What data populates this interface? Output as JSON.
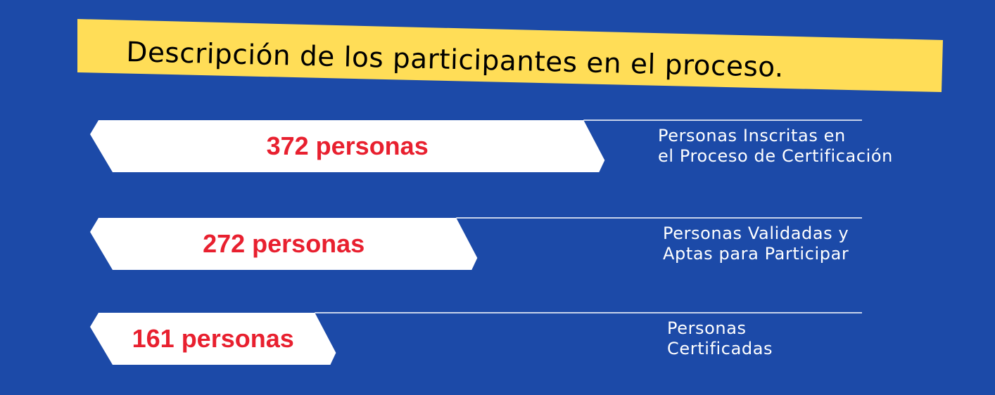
{
  "title": "Descripción de los participantes en el proceso.",
  "colors": {
    "background": "#1c4aa8",
    "banner": "#ffdd57",
    "bar": "#ffffff",
    "value_text": "#e8202f",
    "label_text": "#ffffff"
  },
  "chart_data": {
    "type": "bar",
    "orientation": "horizontal",
    "title": "Descripción de los participantes en el proceso.",
    "categories": [
      [
        "Personas Inscritas en",
        "el Proceso de Certificación"
      ],
      [
        "Personas Validadas y",
        "Aptas para Participar"
      ],
      [
        "Personas",
        "Certificadas"
      ]
    ],
    "values": [
      372,
      272,
      161
    ],
    "data_labels": [
      "372 personas",
      "272 personas",
      "161 personas"
    ]
  }
}
